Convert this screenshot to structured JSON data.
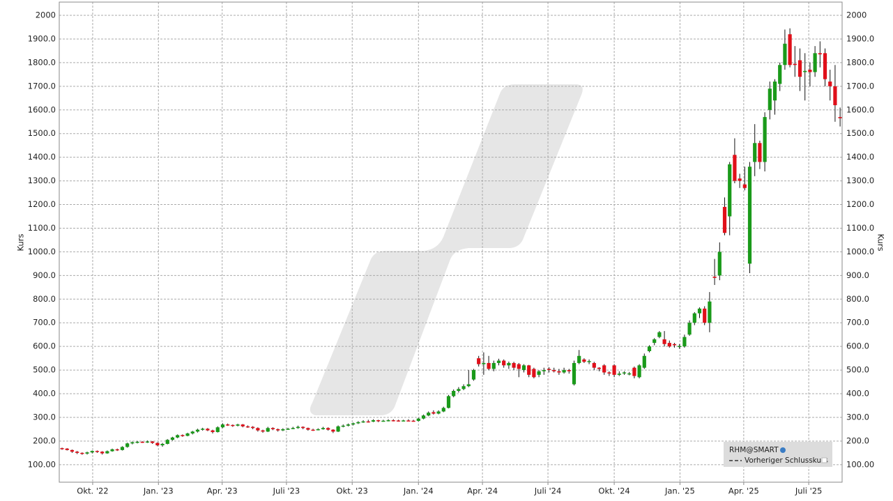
{
  "chart_data": {
    "type": "candlestick",
    "y_label": "Kurs",
    "ylim": [
      26,
      2056
    ],
    "yticks": [
      {
        "value": 100,
        "label": "100.00"
      },
      {
        "value": 200,
        "label": "200.0"
      },
      {
        "value": 300,
        "label": "300.0"
      },
      {
        "value": 400,
        "label": "400.0"
      },
      {
        "value": 500,
        "label": "500.0"
      },
      {
        "value": 600,
        "label": "600.0"
      },
      {
        "value": 700,
        "label": "700.0"
      },
      {
        "value": 800,
        "label": "800.0"
      },
      {
        "value": 900,
        "label": "900.0"
      },
      {
        "value": 1000,
        "label": "1000.0"
      },
      {
        "value": 1100,
        "label": "1100.0"
      },
      {
        "value": 1200,
        "label": "1200.0"
      },
      {
        "value": 1300,
        "label": "1300.0"
      },
      {
        "value": 1400,
        "label": "1400.0"
      },
      {
        "value": 1500,
        "label": "1500.0"
      },
      {
        "value": 1600,
        "label": "1600.0"
      },
      {
        "value": 1700,
        "label": "1700.0"
      },
      {
        "value": 1800,
        "label": "1800.0"
      },
      {
        "value": 1900,
        "label": "1900.0"
      },
      2000
    ],
    "xlim": [
      -0.56,
      155.4
    ],
    "xticks": [
      {
        "value": 6.1,
        "label": "Okt. '22"
      },
      {
        "value": 19.2,
        "label": "Jan. '23"
      },
      {
        "value": 31.9,
        "label": "Apr. '23"
      },
      {
        "value": 44.7,
        "label": "Juli '23"
      },
      {
        "value": 57.8,
        "label": "Okt. '23"
      },
      {
        "value": 71.0,
        "label": "Jan. '24"
      },
      {
        "value": 83.75,
        "label": "Apr. '24"
      },
      {
        "value": 96.8,
        "label": "Juli '24"
      },
      {
        "value": 110.0,
        "label": "Okt. '24"
      },
      {
        "value": 123.1,
        "label": "Jan. '25"
      },
      {
        "value": 135.8,
        "label": "Apr. '25"
      },
      {
        "value": 148.75,
        "label": "Juli '25"
      }
    ],
    "grid": true,
    "legend_position": "lower right",
    "previous_close_label": "Vorheriger Schlusskurs",
    "categories": [
      null,
      null,
      null,
      null,
      null,
      null,
      null,
      null,
      null,
      null,
      null,
      null,
      null,
      null,
      null,
      null,
      null,
      null,
      null,
      null,
      null,
      null,
      null,
      null,
      null,
      null,
      null,
      null,
      null,
      null,
      null,
      null,
      null,
      null,
      null,
      null,
      null,
      null,
      null,
      null,
      null,
      null,
      null,
      null,
      null,
      null,
      null,
      null,
      null,
      null,
      null,
      null,
      null,
      null,
      null,
      null,
      null,
      null,
      null,
      null,
      null,
      null,
      null,
      null,
      null,
      null,
      null,
      null,
      null,
      null,
      null,
      null,
      null,
      null,
      null,
      null,
      null,
      null,
      null,
      null,
      null,
      null,
      null,
      null,
      null,
      null,
      null,
      null,
      null,
      null,
      null,
      null,
      null,
      null,
      null,
      null,
      null,
      null,
      null,
      null,
      null,
      null,
      null,
      null,
      null,
      null,
      null,
      null,
      null,
      null,
      null,
      null,
      null,
      null,
      null,
      null,
      null,
      null,
      null,
      null,
      null,
      null,
      null,
      null,
      null,
      null,
      null,
      null,
      null,
      null,
      null,
      null,
      null,
      null,
      null,
      null,
      null,
      null,
      null,
      null,
      null,
      null,
      null,
      null,
      null,
      null,
      null,
      null,
      null,
      null,
      null,
      null,
      null,
      null,
      null,
      null
    ],
    "series": [
      {
        "name": "RHM@SMART",
        "up_color": "#1a9a1a",
        "down_color": "#e0101a",
        "ohlc": [
          [
            170,
            172,
            163,
            168
          ],
          [
            168,
            170,
            160,
            162
          ],
          [
            162,
            164,
            150,
            155
          ],
          [
            155,
            158,
            145,
            150
          ],
          [
            150,
            152,
            142,
            147
          ],
          [
            147,
            155,
            143,
            152
          ],
          [
            152,
            160,
            148,
            158
          ],
          [
            158,
            160,
            150,
            155
          ],
          [
            155,
            157,
            143,
            148
          ],
          [
            148,
            160,
            146,
            157
          ],
          [
            157,
            168,
            155,
            165
          ],
          [
            165,
            168,
            158,
            162
          ],
          [
            162,
            178,
            160,
            175
          ],
          [
            175,
            193,
            172,
            190
          ],
          [
            190,
            198,
            186,
            195
          ],
          [
            195,
            200,
            190,
            197
          ],
          [
            197,
            199,
            192,
            196
          ],
          [
            196,
            202,
            192,
            198
          ],
          [
            198,
            200,
            188,
            192
          ],
          [
            192,
            195,
            178,
            182
          ],
          [
            182,
            192,
            176,
            188
          ],
          [
            188,
            208,
            186,
            205
          ],
          [
            205,
            218,
            202,
            215
          ],
          [
            215,
            228,
            212,
            225
          ],
          [
            225,
            228,
            218,
            222
          ],
          [
            222,
            235,
            220,
            232
          ],
          [
            232,
            243,
            228,
            240
          ],
          [
            240,
            252,
            236,
            248
          ],
          [
            248,
            256,
            244,
            252
          ],
          [
            252,
            255,
            242,
            245
          ],
          [
            245,
            248,
            232,
            238
          ],
          [
            238,
            262,
            236,
            258
          ],
          [
            258,
            275,
            255,
            270
          ],
          [
            270,
            274,
            264,
            268
          ],
          [
            268,
            270,
            260,
            265
          ],
          [
            265,
            273,
            262,
            270
          ],
          [
            270,
            272,
            258,
            262
          ],
          [
            262,
            266,
            256,
            260
          ],
          [
            260,
            263,
            250,
            255
          ],
          [
            255,
            258,
            240,
            245
          ],
          [
            245,
            248,
            235,
            240
          ],
          [
            240,
            260,
            238,
            255
          ],
          [
            255,
            258,
            246,
            250
          ],
          [
            250,
            253,
            240,
            245
          ],
          [
            245,
            254,
            242,
            250
          ],
          [
            250,
            256,
            247,
            252
          ],
          [
            252,
            260,
            250,
            255
          ],
          [
            255,
            265,
            252,
            260
          ],
          [
            260,
            262,
            250,
            255
          ],
          [
            255,
            257,
            244,
            248
          ],
          [
            248,
            252,
            243,
            247
          ],
          [
            247,
            254,
            245,
            250
          ],
          [
            250,
            260,
            248,
            255
          ],
          [
            255,
            258,
            244,
            248
          ],
          [
            248,
            250,
            234,
            240
          ],
          [
            240,
            266,
            238,
            262
          ],
          [
            262,
            270,
            258,
            265
          ],
          [
            265,
            274,
            262,
            270
          ],
          [
            270,
            278,
            266,
            275
          ],
          [
            275,
            284,
            272,
            280
          ],
          [
            280,
            288,
            277,
            283
          ],
          [
            283,
            290,
            278,
            282
          ],
          [
            282,
            292,
            280,
            288
          ],
          [
            288,
            290,
            280,
            285
          ],
          [
            285,
            290,
            282,
            286
          ],
          [
            286,
            292,
            283,
            288
          ],
          [
            288,
            292,
            283,
            287
          ],
          [
            287,
            290,
            282,
            285
          ],
          [
            285,
            290,
            283,
            287
          ],
          [
            287,
            292,
            284,
            286
          ],
          [
            286,
            290,
            282,
            285
          ],
          [
            285,
            298,
            283,
            295
          ],
          [
            295,
            312,
            292,
            308
          ],
          [
            308,
            325,
            305,
            320
          ],
          [
            322,
            330,
            312,
            316
          ],
          [
            316,
            330,
            313,
            325
          ],
          [
            325,
            345,
            322,
            340
          ],
          [
            340,
            395,
            338,
            390
          ],
          [
            390,
            418,
            385,
            412
          ],
          [
            412,
            428,
            405,
            420
          ],
          [
            420,
            440,
            415,
            432
          ],
          [
            432,
            500,
            428,
            440
          ],
          [
            460,
            505,
            455,
            500
          ],
          [
            550,
            560,
            515,
            525
          ],
          [
            525,
            575,
            480,
            530
          ],
          [
            530,
            560,
            500,
            505
          ],
          [
            505,
            540,
            495,
            530
          ],
          [
            530,
            548,
            520,
            540
          ],
          [
            540,
            545,
            510,
            520
          ],
          [
            520,
            536,
            505,
            530
          ],
          [
            530,
            535,
            500,
            510
          ],
          [
            525,
            530,
            470,
            505
          ],
          [
            500,
            525,
            490,
            520
          ],
          [
            520,
            522,
            470,
            480
          ],
          [
            505,
            510,
            465,
            470
          ],
          [
            480,
            500,
            470,
            495
          ],
          [
            495,
            510,
            480,
            500
          ],
          [
            505,
            512,
            490,
            502
          ],
          [
            500,
            510,
            490,
            495
          ],
          [
            495,
            505,
            480,
            490
          ],
          [
            490,
            510,
            485,
            500
          ],
          [
            500,
            505,
            485,
            495
          ],
          [
            440,
            540,
            435,
            530
          ],
          [
            530,
            585,
            525,
            560
          ],
          [
            545,
            550,
            530,
            535
          ],
          [
            535,
            545,
            525,
            538
          ],
          [
            530,
            535,
            500,
            510
          ],
          [
            510,
            512,
            495,
            505
          ],
          [
            520,
            525,
            480,
            490
          ],
          [
            490,
            495,
            475,
            488
          ],
          [
            520,
            525,
            470,
            480
          ],
          [
            480,
            495,
            475,
            485
          ],
          [
            488,
            495,
            480,
            490
          ],
          [
            485,
            492,
            478,
            486
          ],
          [
            510,
            515,
            465,
            475
          ],
          [
            470,
            525,
            465,
            520
          ],
          [
            510,
            570,
            505,
            560
          ],
          [
            580,
            605,
            575,
            600
          ],
          [
            615,
            635,
            605,
            630
          ],
          [
            640,
            665,
            635,
            660
          ],
          [
            630,
            665,
            600,
            610
          ],
          [
            615,
            625,
            595,
            600
          ],
          [
            610,
            615,
            595,
            605
          ],
          [
            600,
            610,
            590,
            602
          ],
          [
            600,
            650,
            595,
            640
          ],
          [
            650,
            710,
            645,
            700
          ],
          [
            700,
            745,
            690,
            740
          ],
          [
            740,
            765,
            720,
            760
          ],
          [
            760,
            770,
            690,
            700
          ],
          [
            700,
            830,
            660,
            790
          ],
          [
            895,
            970,
            860,
            890
          ],
          [
            900,
            1040,
            880,
            1000
          ],
          [
            1190,
            1230,
            1070,
            1080
          ],
          [
            1150,
            1380,
            1070,
            1370
          ],
          [
            1410,
            1480,
            1290,
            1300
          ],
          [
            1310,
            1330,
            1270,
            1300
          ],
          [
            1285,
            1360,
            1260,
            1270
          ],
          [
            950,
            1380,
            910,
            1360
          ],
          [
            1380,
            1540,
            1320,
            1460
          ],
          [
            1460,
            1470,
            1350,
            1380
          ],
          [
            1380,
            1590,
            1340,
            1570
          ],
          [
            1600,
            1720,
            1560,
            1690
          ],
          [
            1640,
            1730,
            1580,
            1720
          ],
          [
            1710,
            1800,
            1680,
            1790
          ],
          [
            1790,
            1940,
            1770,
            1880
          ],
          [
            1920,
            1945,
            1780,
            1790
          ],
          [
            1795,
            1870,
            1740,
            1790
          ],
          [
            1810,
            1860,
            1680,
            1740
          ],
          [
            1760,
            1840,
            1640,
            1765
          ],
          [
            1770,
            1800,
            1700,
            1760
          ],
          [
            1760,
            1870,
            1740,
            1840
          ],
          [
            1840,
            1890,
            1780,
            1835
          ],
          [
            1840,
            1860,
            1700,
            1730
          ],
          [
            1720,
            1770,
            1640,
            1700
          ],
          [
            1700,
            1790,
            1550,
            1620
          ],
          [
            1570,
            1610,
            1530,
            1565
          ]
        ]
      }
    ]
  }
}
